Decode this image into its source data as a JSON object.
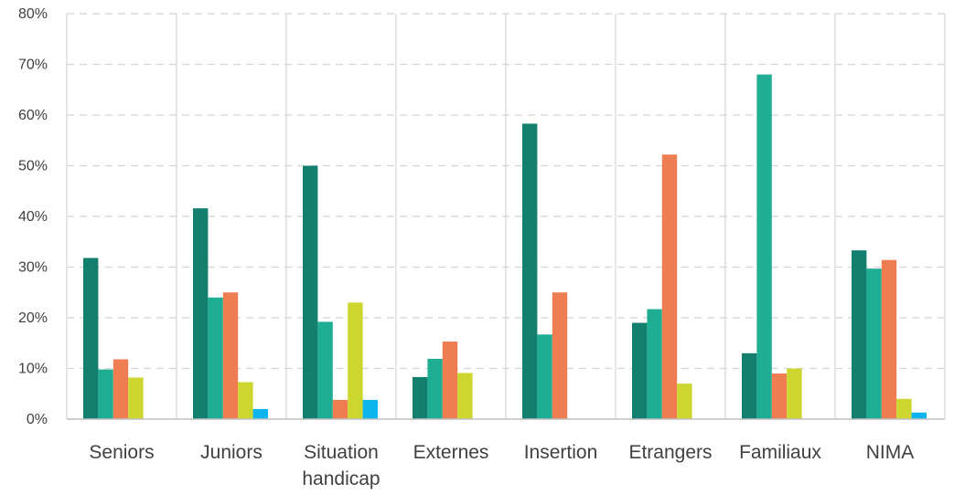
{
  "chart_data": {
    "type": "bar",
    "categories": [
      [
        "Seniors"
      ],
      [
        "Juniors"
      ],
      [
        "Situation",
        "handicap"
      ],
      [
        "Externes"
      ],
      [
        "Insertion"
      ],
      [
        "Etrangers"
      ],
      [
        "Familiaux"
      ],
      [
        "NIMA"
      ]
    ],
    "series": [
      {
        "color": "#127f6f",
        "values": [
          31.8,
          41.6,
          50.0,
          8.3,
          58.3,
          19.0,
          13.0,
          33.3
        ]
      },
      {
        "color": "#1fae94",
        "values": [
          9.8,
          24.0,
          19.2,
          11.9,
          16.7,
          21.7,
          68.0,
          29.7
        ]
      },
      {
        "color": "#ee7d52",
        "values": [
          11.8,
          25.0,
          3.8,
          15.3,
          25.0,
          52.2,
          9.0,
          31.4
        ]
      },
      {
        "color": "#ccd62e",
        "values": [
          8.2,
          7.3,
          23.0,
          9.1,
          0,
          7.0,
          10.0,
          4.0
        ]
      },
      {
        "color": "#0bb4ec",
        "values": [
          0,
          2.0,
          3.8,
          0,
          0,
          0,
          0,
          1.3
        ]
      }
    ],
    "yticks": [
      "0%",
      "10%",
      "20%",
      "30%",
      "40%",
      "50%",
      "60%",
      "70%",
      "80%"
    ],
    "ylim": [
      0,
      80
    ],
    "grid": true,
    "legend": "none",
    "title": "",
    "xlabel": "",
    "ylabel": ""
  }
}
